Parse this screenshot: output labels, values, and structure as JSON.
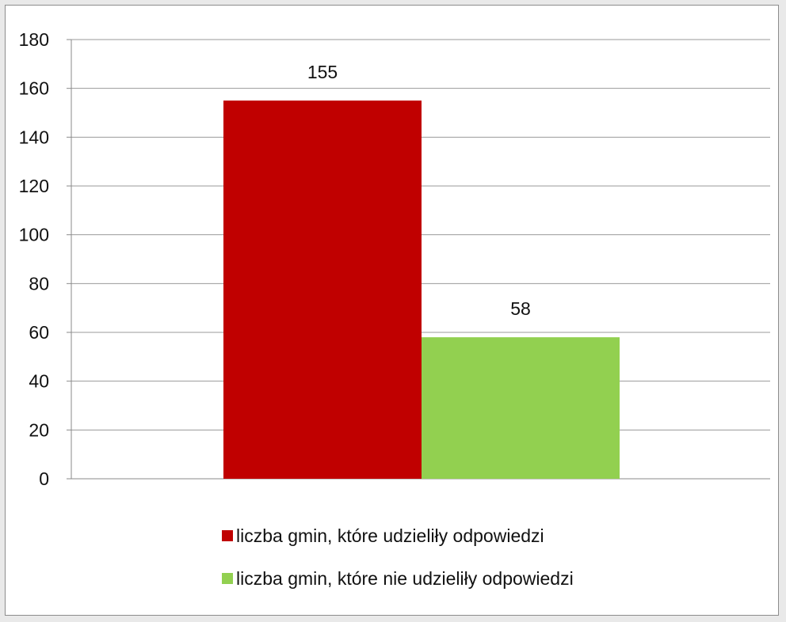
{
  "chart_data": {
    "type": "bar",
    "title": "",
    "xlabel": "",
    "ylabel": "",
    "ylim": [
      0,
      180
    ],
    "yticks": [
      "0",
      "20",
      "40",
      "60",
      "80",
      "100",
      "120",
      "140",
      "160",
      "180"
    ],
    "grid": true,
    "legend_position": "bottom",
    "series": [
      {
        "name": "liczba gmin, które udzieliły odpowiedzi",
        "values": [
          155
        ],
        "color": "#c00000",
        "label": "155"
      },
      {
        "name": "liczba gmin, które nie udzieliły odpowiedzi",
        "values": [
          58
        ],
        "color": "#92d050",
        "label": "58"
      }
    ]
  }
}
